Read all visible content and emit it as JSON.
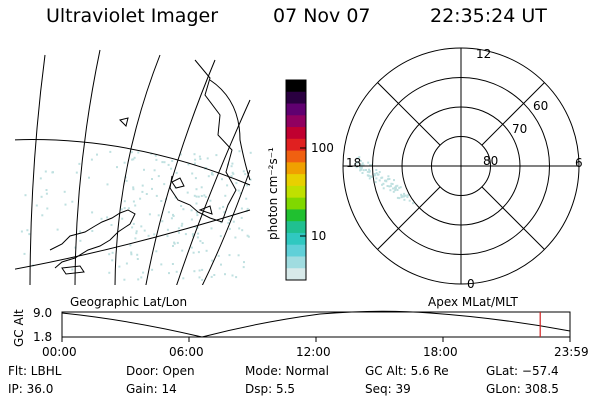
{
  "header": {
    "instrument": "Ultraviolet Imager",
    "date": "07 Nov 07",
    "time": "22:35:24 UT"
  },
  "colorbar": {
    "unit_label": "photon cm⁻²s⁻¹",
    "ticks": [
      "100",
      "10"
    ],
    "colors": [
      "#000000",
      "#2a0040",
      "#600070",
      "#900060",
      "#c00030",
      "#e02020",
      "#f06010",
      "#f0a000",
      "#e8d000",
      "#c0e000",
      "#80d800",
      "#20c030",
      "#20c090",
      "#30c8c0",
      "#60d0d8",
      "#a0dce0",
      "#d8eaea"
    ]
  },
  "geo_map": {
    "label": "Geographic Lat/Lon"
  },
  "polar_plot": {
    "label": "Apex MLat/MLT",
    "lat_labels": [
      "60",
      "70",
      "80"
    ],
    "mlt_labels": [
      "12",
      "18",
      "6",
      "0"
    ]
  },
  "altitude_track": {
    "axis_label": "GC Alt",
    "y_ticks": [
      "9.0",
      "1.8"
    ],
    "x_ticks": [
      "00:00",
      "06:00",
      "12:00",
      "18:00",
      "23:59"
    ],
    "current_marker_hour": 22.59
  },
  "info": {
    "flt": "Flt: LBHL",
    "ip": "IP: 36.0",
    "door": "Door: Open",
    "gain": "Gain: 14",
    "mode": "Mode: Normal",
    "dsp": "Dsp:     5.5",
    "gc_alt": "GC Alt: 5.6 Re",
    "seq": "Seq: 39",
    "glat": "GLat: −57.4",
    "glon": "GLon: 308.5"
  },
  "accent_colors": {
    "aurora": "#bfe0e0",
    "marker": "#d02020"
  }
}
